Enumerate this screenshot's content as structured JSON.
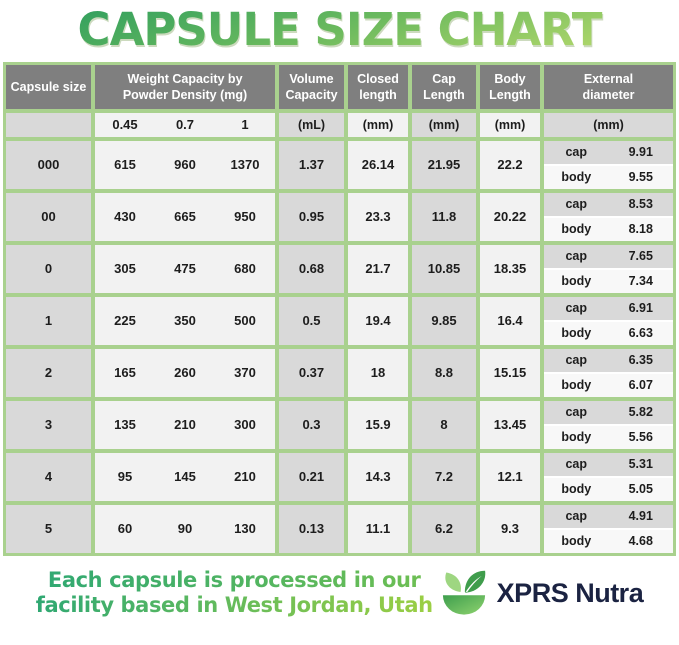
{
  "title": "CAPSULE SIZE CHART",
  "colors": {
    "title_green_dark": "#2a9c5e",
    "title_green_light": "#bcdc6d",
    "table_border_green": "#a9d18e",
    "header_gray": "#7f7f7f",
    "cell_gray": "#d9d9d9",
    "cell_light": "#f2f2f2",
    "footer_green_left": "#2fa873",
    "footer_green_right": "#9ccf43",
    "brand_navy": "#1b2342"
  },
  "table": {
    "headers": {
      "capsule_size": "Capsule size",
      "weight_capacity": "Weight Capacity by Powder Density (mg)",
      "volume_capacity": "Volume Capacity",
      "closed_length": "Closed length",
      "cap_length": "Cap Length",
      "body_length": "Body Length",
      "external_diameter": "External diameter"
    },
    "subheaders": {
      "densities": [
        "0.45",
        "0.7",
        "1"
      ],
      "volume_unit": "(mL)",
      "closed_unit": "(mm)",
      "cap_unit": "(mm)",
      "body_unit": "(mm)",
      "external_unit": "(mm)"
    },
    "external_labels": {
      "cap": "cap",
      "body": "body"
    },
    "rows": [
      {
        "size": "000",
        "weights": [
          "615",
          "960",
          "1370"
        ],
        "volume": "1.37",
        "closed": "26.14",
        "cap_length": "21.95",
        "body_length": "22.2",
        "external": {
          "cap": "9.91",
          "body": "9.55"
        }
      },
      {
        "size": "00",
        "weights": [
          "430",
          "665",
          "950"
        ],
        "volume": "0.95",
        "closed": "23.3",
        "cap_length": "11.8",
        "body_length": "20.22",
        "external": {
          "cap": "8.53",
          "body": "8.18"
        }
      },
      {
        "size": "0",
        "weights": [
          "305",
          "475",
          "680"
        ],
        "volume": "0.68",
        "closed": "21.7",
        "cap_length": "10.85",
        "body_length": "18.35",
        "external": {
          "cap": "7.65",
          "body": "7.34"
        }
      },
      {
        "size": "1",
        "weights": [
          "225",
          "350",
          "500"
        ],
        "volume": "0.5",
        "closed": "19.4",
        "cap_length": "9.85",
        "body_length": "16.4",
        "external": {
          "cap": "6.91",
          "body": "6.63"
        }
      },
      {
        "size": "2",
        "weights": [
          "165",
          "260",
          "370"
        ],
        "volume": "0.37",
        "closed": "18",
        "cap_length": "8.8",
        "body_length": "15.15",
        "external": {
          "cap": "6.35",
          "body": "6.07"
        }
      },
      {
        "size": "3",
        "weights": [
          "135",
          "210",
          "300"
        ],
        "volume": "0.3",
        "closed": "15.9",
        "cap_length": "8",
        "body_length": "13.45",
        "external": {
          "cap": "5.82",
          "body": "5.56"
        }
      },
      {
        "size": "4",
        "weights": [
          "95",
          "145",
          "210"
        ],
        "volume": "0.21",
        "closed": "14.3",
        "cap_length": "7.2",
        "body_length": "12.1",
        "external": {
          "cap": "5.31",
          "body": "5.05"
        }
      },
      {
        "size": "5",
        "weights": [
          "60",
          "90",
          "130"
        ],
        "volume": "0.13",
        "closed": "11.1",
        "cap_length": "6.2",
        "body_length": "9.3",
        "external": {
          "cap": "4.91",
          "body": "4.68"
        }
      }
    ]
  },
  "footer": {
    "note_line1": "Each capsule is processed in our",
    "note_line2": "facility based in West Jordan, Utah",
    "brand": "XPRS Nutra"
  },
  "chart_data": {
    "type": "table",
    "title": "CAPSULE SIZE CHART",
    "columns": [
      "Capsule size",
      "Weight capacity at 0.45 powder density (mg)",
      "Weight capacity at 0.7 powder density (mg)",
      "Weight capacity at 1 powder density (mg)",
      "Volume capacity (mL)",
      "Closed length (mm)",
      "Cap length (mm)",
      "Body length (mm)",
      "External diameter cap (mm)",
      "External diameter body (mm)"
    ],
    "rows": [
      [
        "000",
        615,
        960,
        1370,
        1.37,
        26.14,
        21.95,
        22.2,
        9.91,
        9.55
      ],
      [
        "00",
        430,
        665,
        950,
        0.95,
        23.3,
        11.8,
        20.22,
        8.53,
        8.18
      ],
      [
        "0",
        305,
        475,
        680,
        0.68,
        21.7,
        10.85,
        18.35,
        7.65,
        7.34
      ],
      [
        "1",
        225,
        350,
        500,
        0.5,
        19.4,
        9.85,
        16.4,
        6.91,
        6.63
      ],
      [
        "2",
        165,
        260,
        370,
        0.37,
        18,
        8.8,
        15.15,
        6.35,
        6.07
      ],
      [
        "3",
        135,
        210,
        300,
        0.3,
        15.9,
        8,
        13.45,
        5.82,
        5.56
      ],
      [
        "4",
        95,
        145,
        210,
        0.21,
        14.3,
        7.2,
        12.1,
        5.31,
        5.05
      ],
      [
        "5",
        60,
        90,
        130,
        0.13,
        11.1,
        6.2,
        9.3,
        4.91,
        4.68
      ]
    ]
  }
}
